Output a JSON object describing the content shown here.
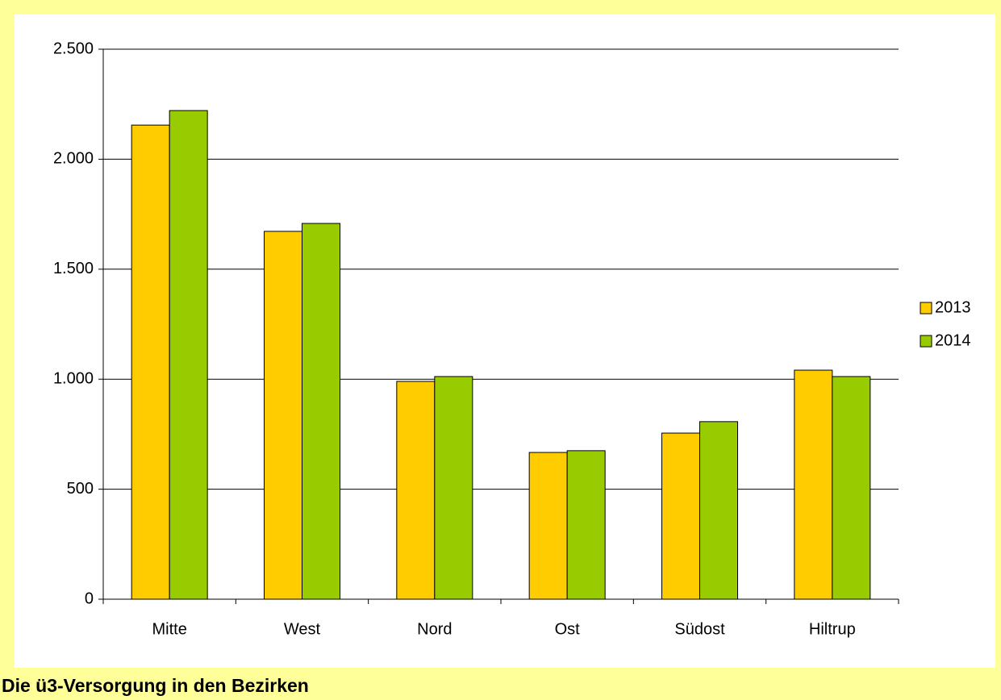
{
  "chart_data": {
    "type": "bar",
    "title": "Die ü3-Versorgung in den Bezirken",
    "categories": [
      "Mitte",
      "West",
      "Nord",
      "Ost",
      "Südost",
      "Hiltrup"
    ],
    "series": [
      {
        "name": "2013",
        "color": "#ffcc00",
        "values": [
          2155,
          1672,
          990,
          667,
          755,
          1041
        ]
      },
      {
        "name": "2014",
        "color": "#99cc00",
        "values": [
          2221,
          1708,
          1012,
          675,
          807,
          1012
        ]
      }
    ],
    "ylim": [
      0,
      2500
    ],
    "yticks": [
      0,
      500,
      {
        "value": 1000,
        "label": "1.000"
      },
      {
        "value": 1500,
        "label": "1.500"
      },
      {
        "value": 2000,
        "label": "2.000"
      },
      {
        "value": 2500,
        "label": "2.500"
      }
    ],
    "grid": true,
    "legend": "right"
  }
}
